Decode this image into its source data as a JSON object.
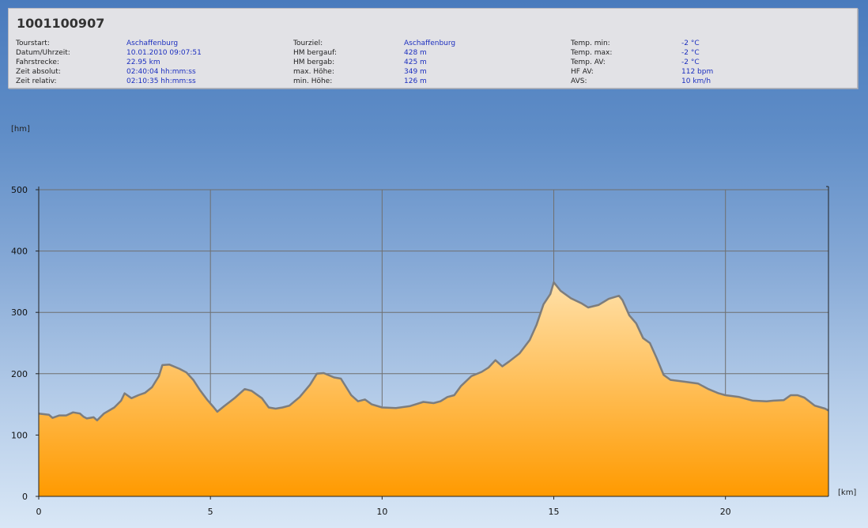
{
  "header": {
    "title": "1001100907",
    "columns": [
      [
        {
          "label": "Tourstart:",
          "value": "Aschaffenburg"
        },
        {
          "label": "Datum/Uhrzeit:",
          "value": "10.01.2010 09:07:51"
        },
        {
          "label": "Fahrstrecke:",
          "value": "22.95 km"
        },
        {
          "label": "Zeit absolut:",
          "value": "02:40:04 hh:mm:ss"
        },
        {
          "label": "Zeit relativ:",
          "value": "02:10:35 hh:mm:ss"
        }
      ],
      [
        {
          "label": "Tourziel:",
          "value": "Aschaffenburg"
        },
        {
          "label": "HM bergauf:",
          "value": "428 m"
        },
        {
          "label": "HM bergab:",
          "value": "425 m"
        },
        {
          "label": "max. Höhe:",
          "value": "349 m"
        },
        {
          "label": "min. Höhe:",
          "value": "126 m"
        }
      ],
      [
        {
          "label": "Temp. min:",
          "value": "-2 °C"
        },
        {
          "label": "Temp. max:",
          "value": "-2 °C"
        },
        {
          "label": "Temp. AV:",
          "value": "-2 °C"
        },
        {
          "label": "HF AV:",
          "value": "112 bpm"
        },
        {
          "label": "AVS:",
          "value": "10 km/h"
        }
      ]
    ]
  },
  "chart_data": {
    "type": "area",
    "title": "",
    "ylabel": "[hm]",
    "xlabel": "[km]",
    "xlim": [
      0,
      23
    ],
    "ylim": [
      0,
      500
    ],
    "xticks": [
      0,
      5,
      10,
      15,
      20
    ],
    "yticks": [
      0,
      100,
      200,
      300,
      400,
      500
    ],
    "grid": true,
    "colors": {
      "fill_top": "#ffe0a8",
      "fill_bottom": "#ff9a00",
      "line": "#7d7d7d",
      "grid": "#6f6f6f"
    },
    "x": [
      0,
      0.3,
      0.4,
      0.6,
      0.8,
      1.0,
      1.2,
      1.3,
      1.4,
      1.6,
      1.7,
      1.9,
      2.2,
      2.4,
      2.5,
      2.7,
      2.9,
      3.1,
      3.3,
      3.5,
      3.6,
      3.8,
      4.1,
      4.3,
      4.5,
      4.7,
      4.9,
      5.1,
      5.2,
      5.4,
      5.7,
      6.0,
      6.2,
      6.5,
      6.7,
      6.9,
      7.1,
      7.3,
      7.6,
      7.9,
      8.1,
      8.3,
      8.6,
      8.8,
      9.1,
      9.3,
      9.5,
      9.7,
      10.0,
      10.4,
      10.8,
      11.2,
      11.5,
      11.7,
      11.9,
      12.1,
      12.3,
      12.6,
      12.9,
      13.1,
      13.3,
      13.5,
      13.7,
      14.0,
      14.3,
      14.5,
      14.7,
      14.9,
      15.0,
      15.2,
      15.5,
      15.8,
      16.0,
      16.3,
      16.6,
      16.9,
      17.0,
      17.2,
      17.4,
      17.6,
      17.8,
      18.0,
      18.2,
      18.4,
      18.8,
      19.2,
      19.5,
      19.8,
      20.0,
      20.4,
      20.8,
      21.2,
      21.4,
      21.7,
      21.9,
      22.1,
      22.3,
      22.6,
      22.9,
      23.0
    ],
    "y": [
      135,
      133,
      128,
      132,
      132,
      137,
      135,
      130,
      127,
      129,
      124,
      135,
      145,
      156,
      168,
      160,
      165,
      169,
      178,
      196,
      214,
      215,
      208,
      202,
      190,
      173,
      158,
      145,
      138,
      147,
      160,
      175,
      172,
      160,
      145,
      143,
      145,
      148,
      162,
      182,
      200,
      201,
      194,
      192,
      165,
      155,
      158,
      150,
      145,
      144,
      147,
      154,
      152,
      155,
      162,
      165,
      180,
      196,
      203,
      210,
      222,
      212,
      220,
      233,
      255,
      280,
      313,
      330,
      349,
      335,
      323,
      315,
      308,
      312,
      322,
      327,
      320,
      295,
      282,
      258,
      250,
      225,
      198,
      190,
      187,
      184,
      175,
      168,
      165,
      162,
      156,
      155,
      156,
      157,
      165,
      165,
      161,
      148,
      143,
      140
    ]
  }
}
